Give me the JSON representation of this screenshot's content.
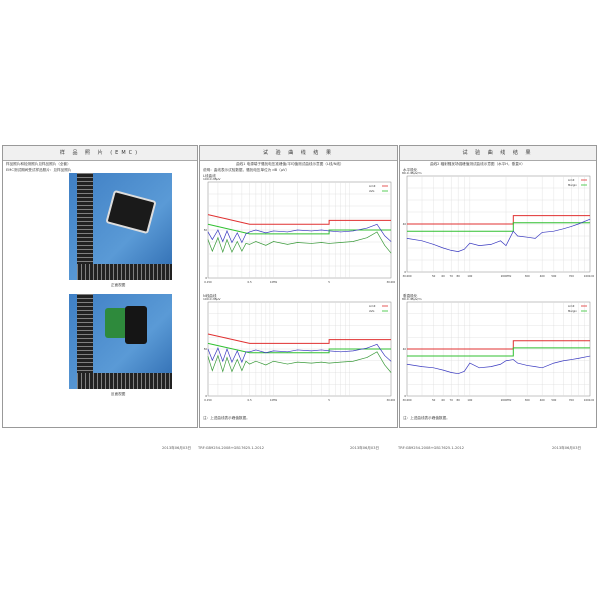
{
  "page1": {
    "header": "样 品 照 片 (EMC)",
    "line1": "样品照片和检测照片见样品照片（全套）",
    "line2": "EMC测试期间受试样品照片：见样品照片",
    "photos": [
      {
        "caption": "正面视图"
      },
      {
        "caption": "反面视图"
      }
    ]
  },
  "page2": {
    "header": "试 验 曲 线 结 果",
    "subtitle": "曲线1  电源端子骚扰电压准峰值/平均值测试曲线示意图（L线/N线）",
    "note": "说明：曲线表示试验数据，骚扰电压单位为 dB（μV）",
    "footnote": "注：上述曲线表示峰值数据。"
  },
  "page3": {
    "header": "试 验 曲 线 结 果",
    "subtitle": "曲线2  辐射骚扰场强峰值测试曲线示意图（水平H，垂直V）",
    "footnote": "注：上述曲线表示峰值数据。"
  },
  "footer": {
    "date_left": "2013年06月03日",
    "std_left": "TRF:GB9254-2008+GB17625.1-2012",
    "date_mid": "2013年06月03日",
    "std_right": "TRF:GB9254-2008+GB17625.1-2012",
    "date_right": "2013年06月03日"
  },
  "colors": {
    "limit": "#e03030",
    "avg_limit": "#30c030",
    "trace_peak": "#3a3ac0",
    "trace_avg": "#3a9a3a"
  },
  "chart_data": [
    {
      "type": "line",
      "title": "L线曲线",
      "yunit": "dBμV",
      "xscale": "log",
      "xlim": [
        0.15,
        30
      ],
      "ylim": [
        0,
        100
      ],
      "xticks": [
        "0.150",
        "0.5",
        "1MHz",
        "5",
        "30.000"
      ],
      "xtick_values": [
        0.15,
        0.5,
        1,
        5,
        30
      ],
      "yticks": [
        "100.0",
        "50",
        "0"
      ],
      "ytick_values": [
        100,
        50,
        0
      ],
      "legend": [
        "Limit",
        "AVG"
      ],
      "legend_position": "top-right",
      "grid": true,
      "limits": [
        {
          "name": "Limit",
          "x": [
            0.15,
            0.5,
            0.5,
            5,
            5,
            30
          ],
          "y": [
            66,
            56,
            56,
            56,
            60,
            60
          ]
        },
        {
          "name": "AVG",
          "x": [
            0.15,
            0.5,
            0.5,
            5,
            5,
            30
          ],
          "y": [
            56,
            46,
            46,
            46,
            50,
            50
          ]
        }
      ],
      "x": [
        0.15,
        0.17,
        0.2,
        0.23,
        0.26,
        0.3,
        0.35,
        0.4,
        0.45,
        0.5,
        0.6,
        0.8,
        1,
        1.5,
        2,
        3,
        4,
        5,
        7,
        10,
        15,
        20,
        25,
        30
      ],
      "series": [
        {
          "name": "peak",
          "values": [
            48,
            40,
            50,
            38,
            49,
            37,
            47,
            37,
            46,
            48,
            50,
            47,
            49,
            48,
            50,
            49,
            50,
            49,
            48,
            49,
            52,
            56,
            44,
            38
          ]
        },
        {
          "name": "avg",
          "values": [
            40,
            28,
            42,
            27,
            40,
            27,
            38,
            28,
            36,
            35,
            38,
            34,
            38,
            35,
            37,
            36,
            37,
            36,
            37,
            38,
            42,
            48,
            34,
            26
          ]
        }
      ]
    },
    {
      "type": "line",
      "title": "N线曲线",
      "yunit": "dBμV",
      "xscale": "log",
      "xlim": [
        0.15,
        30
      ],
      "ylim": [
        0,
        100
      ],
      "xticks": [
        "0.150",
        "0.5",
        "1MHz",
        "5",
        "30.000"
      ],
      "xtick_values": [
        0.15,
        0.5,
        1,
        5,
        30
      ],
      "yticks": [
        "100.0",
        "50",
        "0"
      ],
      "ytick_values": [
        100,
        50,
        0
      ],
      "legend": [
        "Limit",
        "AVG"
      ],
      "legend_position": "top-right",
      "grid": true,
      "limits": [
        {
          "name": "Limit",
          "x": [
            0.15,
            0.5,
            0.5,
            5,
            5,
            30
          ],
          "y": [
            66,
            56,
            56,
            56,
            60,
            60
          ]
        },
        {
          "name": "AVG",
          "x": [
            0.15,
            0.5,
            0.5,
            5,
            5,
            30
          ],
          "y": [
            56,
            46,
            46,
            46,
            50,
            50
          ]
        }
      ],
      "x": [
        0.15,
        0.17,
        0.2,
        0.23,
        0.26,
        0.3,
        0.35,
        0.4,
        0.45,
        0.5,
        0.6,
        0.8,
        1,
        1.5,
        2,
        3,
        4,
        5,
        7,
        10,
        15,
        20,
        25,
        30
      ],
      "series": [
        {
          "name": "peak",
          "values": [
            50,
            38,
            51,
            37,
            50,
            36,
            48,
            36,
            47,
            47,
            49,
            46,
            48,
            47,
            49,
            48,
            49,
            48,
            47,
            48,
            51,
            55,
            43,
            37
          ]
        },
        {
          "name": "avg",
          "values": [
            42,
            27,
            43,
            26,
            41,
            26,
            39,
            27,
            37,
            34,
            37,
            33,
            37,
            34,
            36,
            35,
            36,
            35,
            36,
            37,
            41,
            47,
            33,
            25
          ]
        }
      ]
    },
    {
      "type": "line",
      "title": "水平极化",
      "yunit": "dBμV/m",
      "xscale": "log",
      "xlim": [
        30,
        1000
      ],
      "ylim": [
        0,
        80
      ],
      "xticks": [
        "30.000",
        "50",
        "60",
        "70",
        "80",
        "100",
        "200MHz",
        "300",
        "400",
        "500",
        "700",
        "1000.000"
      ],
      "xtick_values": [
        30,
        50,
        60,
        70,
        80,
        100,
        200,
        300,
        400,
        500,
        700,
        1000
      ],
      "yticks": [
        "80.0",
        "40",
        "0"
      ],
      "ytick_values": [
        80,
        40,
        0
      ],
      "legend": [
        "Limit",
        "Margin"
      ],
      "legend_position": "top-right",
      "grid": true,
      "limits": [
        {
          "name": "Limit",
          "x": [
            30,
            230,
            230,
            1000
          ],
          "y": [
            40,
            40,
            47,
            47
          ]
        },
        {
          "name": "Margin",
          "x": [
            30,
            230,
            230,
            1000
          ],
          "y": [
            34,
            34,
            41,
            41
          ]
        }
      ],
      "x": [
        30,
        40,
        50,
        60,
        70,
        80,
        90,
        100,
        120,
        150,
        180,
        200,
        230,
        250,
        300,
        350,
        400,
        500,
        600,
        700,
        800,
        1000
      ],
      "series": [
        {
          "name": "peak",
          "values": [
            28,
            26,
            23,
            20,
            18,
            17,
            19,
            24,
            22,
            23,
            26,
            22,
            34,
            30,
            29,
            28,
            33,
            34,
            36,
            38,
            40,
            44
          ]
        }
      ]
    },
    {
      "type": "line",
      "title": "垂直极化",
      "yunit": "dBμV/m",
      "xscale": "log",
      "xlim": [
        30,
        1000
      ],
      "ylim": [
        0,
        80
      ],
      "xticks": [
        "30.000",
        "50",
        "60",
        "70",
        "80",
        "100",
        "200MHz",
        "300",
        "400",
        "500",
        "700",
        "1000.000"
      ],
      "xtick_values": [
        30,
        50,
        60,
        70,
        80,
        100,
        200,
        300,
        400,
        500,
        700,
        1000
      ],
      "yticks": [
        "80.0",
        "40",
        "0"
      ],
      "ytick_values": [
        80,
        40,
        0
      ],
      "legend": [
        "Limit",
        "Margin"
      ],
      "legend_position": "top-right",
      "grid": true,
      "limits": [
        {
          "name": "Limit",
          "x": [
            30,
            230,
            230,
            1000
          ],
          "y": [
            40,
            40,
            47,
            47
          ]
        },
        {
          "name": "Margin",
          "x": [
            30,
            230,
            230,
            1000
          ],
          "y": [
            34,
            34,
            41,
            41
          ]
        }
      ],
      "x": [
        30,
        40,
        50,
        60,
        70,
        80,
        90,
        100,
        120,
        150,
        180,
        200,
        230,
        250,
        300,
        350,
        400,
        500,
        600,
        700,
        800,
        1000
      ],
      "series": [
        {
          "name": "peak",
          "values": [
            27,
            25,
            24,
            22,
            20,
            19,
            21,
            28,
            24,
            25,
            27,
            30,
            31,
            28,
            26,
            25,
            24,
            28,
            30,
            31,
            32,
            34
          ]
        }
      ]
    }
  ]
}
